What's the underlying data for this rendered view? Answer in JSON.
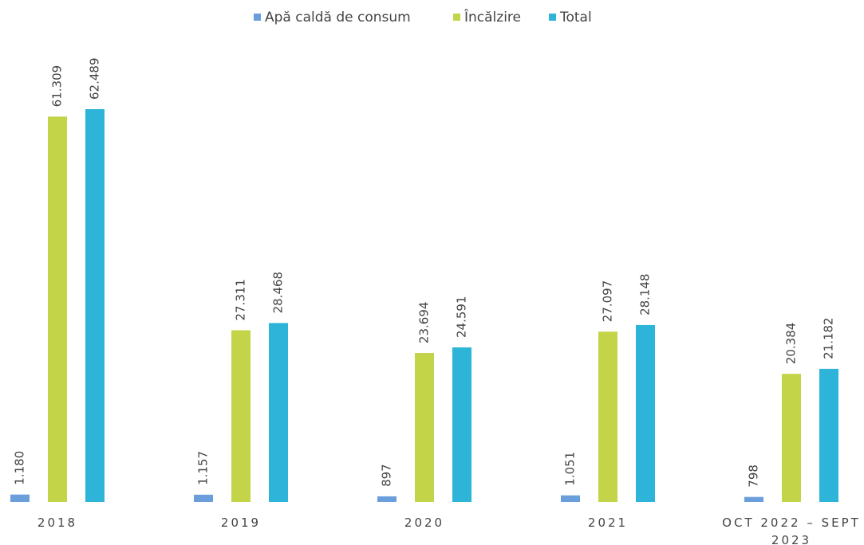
{
  "chart_data": {
    "type": "bar",
    "categories": [
      "2018",
      "2019",
      "2020",
      "2021",
      "OCT 2022 – SEPT 2023"
    ],
    "series": [
      {
        "name": "Apă caldă de consum",
        "color": "#6a9fdc",
        "values": [
          1180,
          1157,
          897,
          1051,
          798
        ],
        "value_labels": [
          "1.180",
          "1.157",
          "897",
          "1.051",
          "798"
        ]
      },
      {
        "name": "Încălzire",
        "color": "#c3d449",
        "values": [
          61309,
          27311,
          23694,
          27097,
          20384
        ],
        "value_labels": [
          "61.309",
          "27.311",
          "23.694",
          "27.097",
          "20.384"
        ]
      },
      {
        "name": "Total",
        "color": "#2db4d8",
        "values": [
          62489,
          28468,
          24591,
          28148,
          21182
        ],
        "value_labels": [
          "62.489",
          "28.468",
          "24.591",
          "28.148",
          "21.182"
        ]
      }
    ],
    "legend": "top"
  }
}
